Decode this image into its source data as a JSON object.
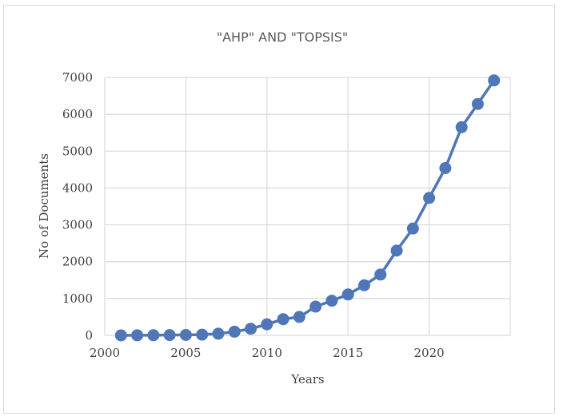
{
  "chart_data": {
    "type": "line",
    "title": "\"AHP\" AND \"TOPSIS\"",
    "xlabel": "Years",
    "ylabel": "No of Documents",
    "xlim": [
      2000,
      2025
    ],
    "ylim": [
      0,
      7000
    ],
    "x_ticks": [
      "2000",
      "2005",
      "2010",
      "2015",
      "2020"
    ],
    "y_ticks": [
      "0",
      "1000",
      "2000",
      "3000",
      "4000",
      "5000",
      "6000",
      "7000"
    ],
    "grid": true,
    "legend": "none",
    "color": "#4f76b6",
    "series": [
      {
        "x": [
          2001,
          2002,
          2003,
          2004,
          2005,
          2006,
          2007,
          2008,
          2009,
          2010,
          2011,
          2012,
          2013,
          2014,
          2015,
          2016,
          2017,
          2018,
          2019,
          2020,
          2021,
          2022,
          2023,
          2024
        ],
        "values": [
          0,
          2,
          5,
          8,
          12,
          20,
          45,
          100,
          180,
          300,
          440,
          500,
          780,
          940,
          1110,
          1360,
          1650,
          2300,
          2900,
          3730,
          4540,
          5650,
          6280,
          6920
        ]
      }
    ]
  }
}
